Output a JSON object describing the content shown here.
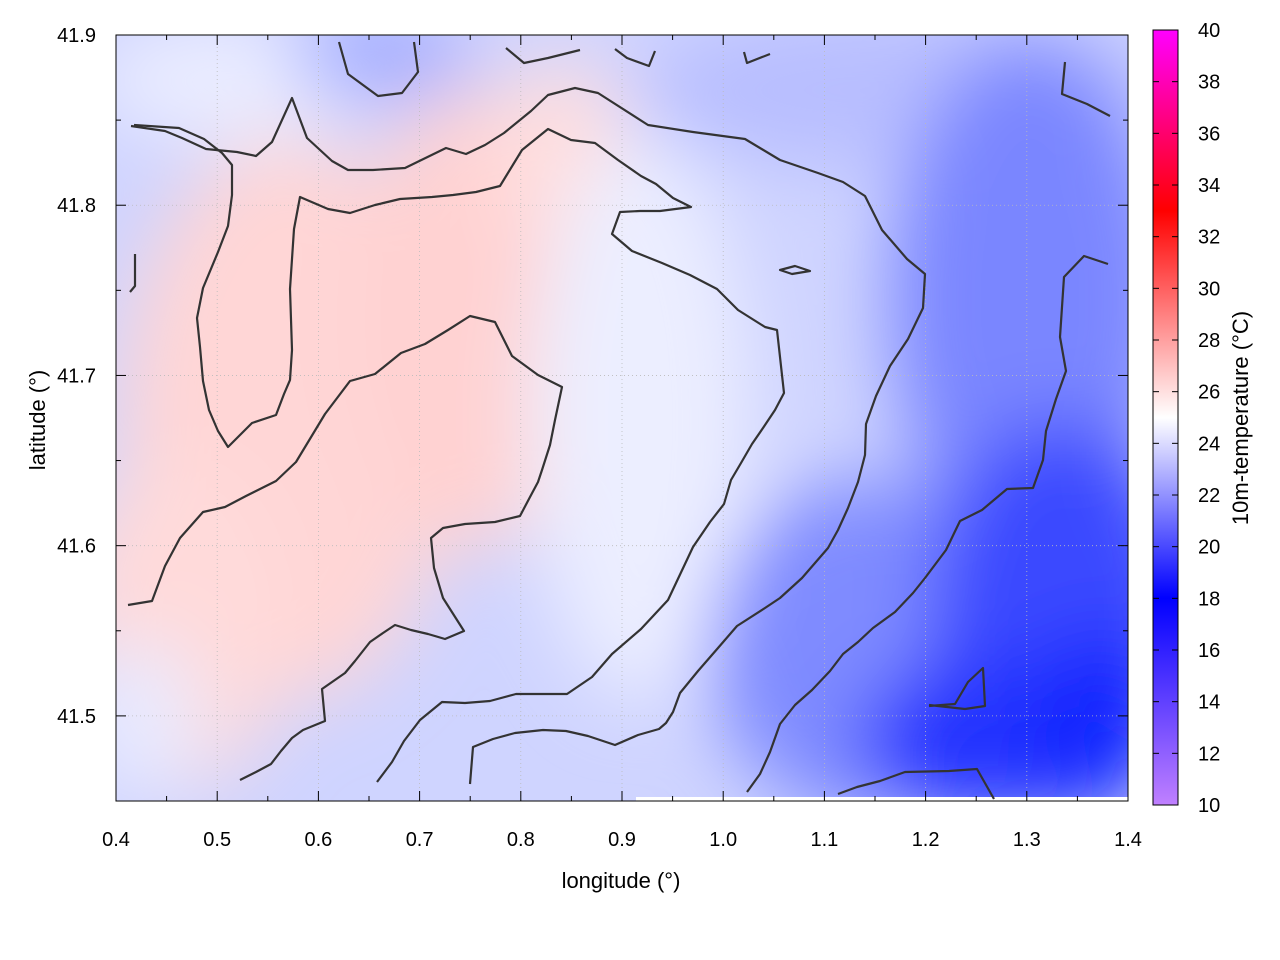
{
  "chart_data": {
    "type": "heatmap",
    "xlabel": "longitude (°)",
    "ylabel": "latitude (°)",
    "colorbar_label": "10m-temperature (°C)",
    "xlim": [
      0.4,
      1.4
    ],
    "ylim": [
      41.45,
      41.9
    ],
    "x_ticks": [
      "0.4",
      "0.5",
      "0.6",
      "0.7",
      "0.8",
      "0.9",
      "1.0",
      "1.1",
      "1.2",
      "1.3",
      "1.4"
    ],
    "y_ticks": [
      "41.5",
      "41.6",
      "41.7",
      "41.8",
      "41.9"
    ],
    "colorbar_ticks": [
      "10",
      "12",
      "14",
      "16",
      "18",
      "20",
      "22",
      "24",
      "26",
      "28",
      "30",
      "32",
      "34",
      "36",
      "38",
      "40"
    ],
    "colorbar_range": [
      10,
      40
    ],
    "colorscale": [
      {
        "value": 10,
        "color": "#c080ff"
      },
      {
        "value": 18,
        "color": "#0000ff"
      },
      {
        "value": 25,
        "color": "#ffffff"
      },
      {
        "value": 33,
        "color": "#ff0000"
      },
      {
        "value": 40,
        "color": "#ff00ff"
      }
    ],
    "grid": true,
    "contour_color": "#333333",
    "field_summary": [
      {
        "region": "west-central ridge (lon 0.45–0.85)",
        "temperature": 26
      },
      {
        "region": "north edge",
        "temperature": 22
      },
      {
        "region": "east (lon 1.0–1.3)",
        "temperature": 20
      },
      {
        "region": "south-east corner (lon 1.2–1.4, lat 41.45–41.55)",
        "temperature": 17
      }
    ]
  }
}
